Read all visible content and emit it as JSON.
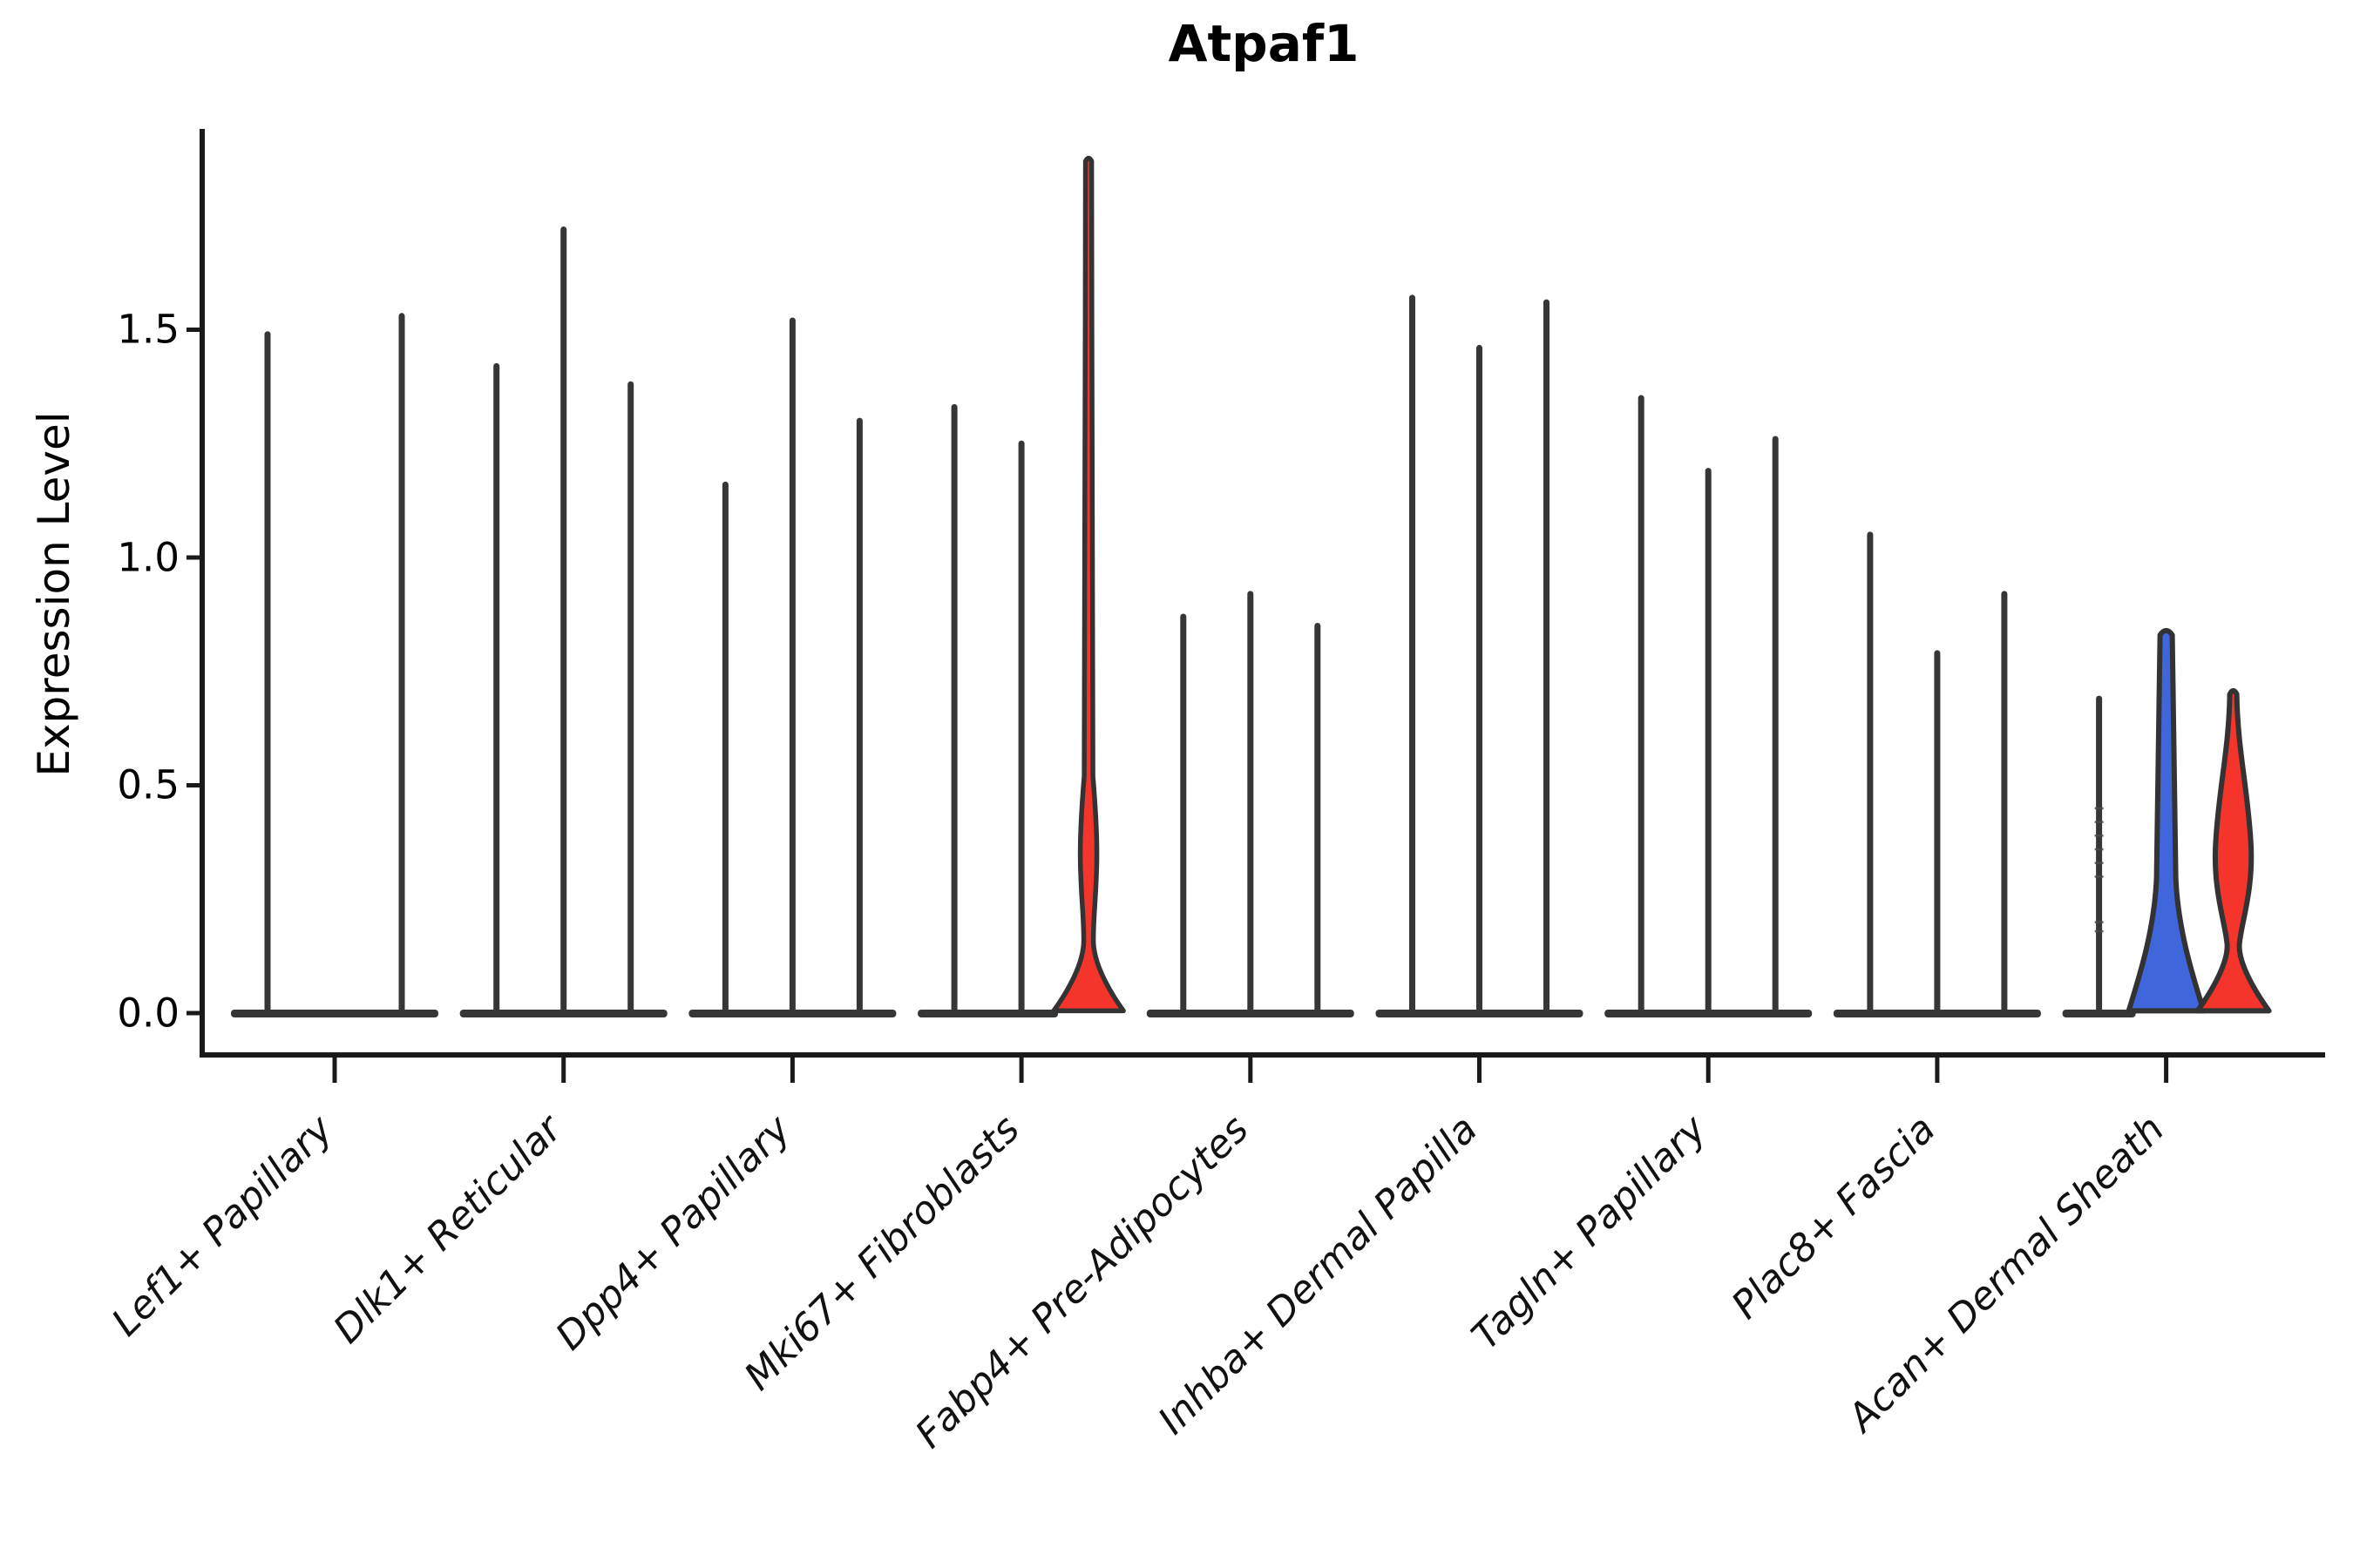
{
  "title": "Atpaf1",
  "chart_data": {
    "type": "violin",
    "title": "Atpaf1",
    "ylabel": "Expression Level",
    "xlabel": "",
    "ylim": [
      -0.09,
      1.94
    ],
    "y_ticks": [
      0.0,
      0.5,
      1.0,
      1.5
    ],
    "y_tick_labels": [
      "0.0",
      "0.5",
      "1.0",
      "1.5"
    ],
    "grid": false,
    "legend_position": "none",
    "violins_per_category": 3,
    "categories": [
      "Lef1+ Papillary",
      "Dlk1+ Reticular",
      "Dpp4+ Papillary",
      "Mki67+ Fibroblasts",
      "Fabp4+ Pre-Adipocytes",
      "Inhba+ Dermal Papilla",
      "Tagln+ Papillary",
      "Plac8+ Fascia",
      "Acan+ Dermal Sheath"
    ],
    "groups": [
      {
        "category": "Lef1+ Papillary",
        "violins": [
          {
            "max": 1.49,
            "style": "spike"
          },
          {
            "max": 0.02,
            "style": "flat"
          },
          {
            "max": 1.53,
            "style": "spike"
          }
        ]
      },
      {
        "category": "Dlk1+ Reticular",
        "violins": [
          {
            "max": 1.42,
            "style": "spike"
          },
          {
            "max": 1.72,
            "style": "spike"
          },
          {
            "max": 1.38,
            "style": "spike"
          }
        ]
      },
      {
        "category": "Dpp4+ Papillary",
        "violins": [
          {
            "max": 1.16,
            "style": "spike"
          },
          {
            "max": 1.52,
            "style": "spike"
          },
          {
            "max": 1.3,
            "style": "spike"
          }
        ]
      },
      {
        "category": "Mki67+ Fibroblasts",
        "violins": [
          {
            "max": 1.33,
            "style": "spike"
          },
          {
            "max": 1.25,
            "style": "spike"
          },
          {
            "max": 1.87,
            "style": "red-tall",
            "fill": "red"
          }
        ]
      },
      {
        "category": "Fabp4+ Pre-Adipocytes",
        "violins": [
          {
            "max": 0.87,
            "style": "spike"
          },
          {
            "max": 0.92,
            "style": "spike"
          },
          {
            "max": 0.85,
            "style": "spike"
          }
        ]
      },
      {
        "category": "Inhba+ Dermal Papilla",
        "violins": [
          {
            "max": 1.57,
            "style": "spike"
          },
          {
            "max": 1.46,
            "style": "spike"
          },
          {
            "max": 1.56,
            "style": "spike"
          }
        ]
      },
      {
        "category": "Tagln+ Papillary",
        "violins": [
          {
            "max": 1.35,
            "style": "spike"
          },
          {
            "max": 1.19,
            "style": "spike"
          },
          {
            "max": 1.26,
            "style": "spike"
          }
        ]
      },
      {
        "category": "Plac8+ Fascia",
        "violins": [
          {
            "max": 1.05,
            "style": "spike"
          },
          {
            "max": 0.79,
            "style": "spike"
          },
          {
            "max": 0.92,
            "style": "spike"
          }
        ]
      },
      {
        "category": "Acan+ Dermal Sheath",
        "violins": [
          {
            "max": 0.69,
            "style": "spike",
            "point_dashes": [
              0.45,
              0.42,
              0.39,
              0.36,
              0.33,
              0.3,
              0.2,
              0.18
            ]
          },
          {
            "max": 0.83,
            "style": "blue-bell",
            "fill": "blue"
          },
          {
            "max": 0.7,
            "style": "red-bell",
            "fill": "red"
          }
        ]
      }
    ],
    "colors": {
      "blue": "#4066DB",
      "red": "#F5352B",
      "outline": "#333333",
      "spike": "#363636",
      "axis": "#1A1A1A",
      "background": "#FFFFFF"
    }
  }
}
